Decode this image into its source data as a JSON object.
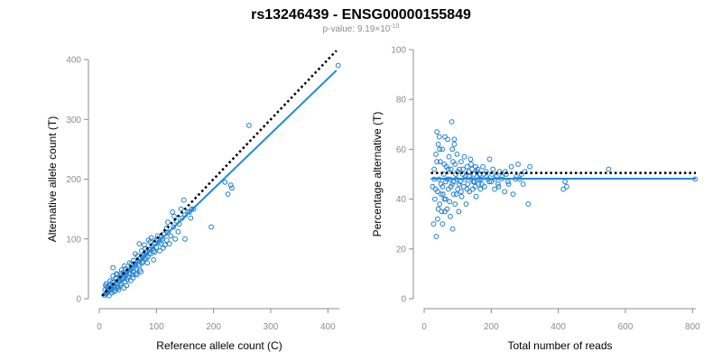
{
  "title": "rs13246439 - ENSG00000155849",
  "subtitle_prefix": "p-value: 9.19×10",
  "subtitle_exponent": "-10",
  "colors": {
    "points": "#1f7fd0",
    "fit": "#1e88e5",
    "reference": "#000000",
    "axis": "#8c8c8c"
  },
  "chart_data": [
    {
      "type": "scatter",
      "xlabel": "Reference allele count (C)",
      "ylabel": "Alternative allele count (T)",
      "xlim": [
        0,
        420
      ],
      "ylim": [
        0,
        400
      ],
      "xticks": [
        "0",
        "100",
        "200",
        "300",
        "400"
      ],
      "yticks": [
        "0",
        "100",
        "200",
        "300",
        "400"
      ],
      "fit_line": {
        "x": [
          5,
          415
        ],
        "y": [
          4,
          382
        ]
      },
      "reference_line": {
        "x": [
          5,
          415
        ],
        "y": [
          5,
          415
        ]
      },
      "points": [
        [
          12,
          8
        ],
        [
          15,
          12
        ],
        [
          18,
          15
        ],
        [
          20,
          18
        ],
        [
          22,
          10
        ],
        [
          25,
          22
        ],
        [
          28,
          14
        ],
        [
          30,
          26
        ],
        [
          32,
          20
        ],
        [
          35,
          30
        ],
        [
          14,
          20
        ],
        [
          17,
          5
        ],
        [
          19,
          24
        ],
        [
          23,
          28
        ],
        [
          26,
          12
        ],
        [
          29,
          35
        ],
        [
          33,
          18
        ],
        [
          36,
          38
        ],
        [
          38,
          25
        ],
        [
          40,
          32
        ],
        [
          42,
          44
        ],
        [
          45,
          28
        ],
        [
          47,
          40
        ],
        [
          50,
          36
        ],
        [
          52,
          48
        ],
        [
          55,
          30
        ],
        [
          57,
          52
        ],
        [
          60,
          45
        ],
        [
          62,
          58
        ],
        [
          65,
          50
        ],
        [
          68,
          62
        ],
        [
          70,
          55
        ],
        [
          72,
          68
        ],
        [
          75,
          60
        ],
        [
          78,
          72
        ],
        [
          80,
          66
        ],
        [
          83,
          78
        ],
        [
          85,
          70
        ],
        [
          88,
          82
        ],
        [
          90,
          75
        ],
        [
          92,
          88
        ],
        [
          95,
          80
        ],
        [
          98,
          92
        ],
        [
          100,
          86
        ],
        [
          105,
          95
        ],
        [
          110,
          100
        ],
        [
          115,
          90
        ],
        [
          120,
          110
        ],
        [
          125,
          105
        ],
        [
          130,
          120
        ],
        [
          135,
          130
        ],
        [
          140,
          125
        ],
        [
          145,
          135
        ],
        [
          150,
          140
        ],
        [
          155,
          145
        ],
        [
          160,
          135
        ],
        [
          162,
          150
        ],
        [
          44,
          55
        ],
        [
          48,
          22
        ],
        [
          58,
          40
        ],
        [
          63,
          75
        ],
        [
          73,
          45
        ],
        [
          86,
          98
        ],
        [
          95,
          65
        ],
        [
          112,
          85
        ],
        [
          128,
          145
        ],
        [
          133,
          100
        ],
        [
          148,
          165
        ],
        [
          150,
          100
        ],
        [
          196,
          120
        ],
        [
          220,
          195
        ],
        [
          225,
          175
        ],
        [
          230,
          190
        ],
        [
          232,
          185
        ],
        [
          262,
          290
        ],
        [
          418,
          390
        ],
        [
          24,
          38
        ],
        [
          27,
          18
        ],
        [
          31,
          40
        ],
        [
          34,
          15
        ],
        [
          37,
          22
        ],
        [
          39,
          48
        ],
        [
          41,
          35
        ],
        [
          43,
          18
        ],
        [
          46,
          50
        ],
        [
          49,
          32
        ],
        [
          53,
          42
        ],
        [
          56,
          58
        ],
        [
          59,
          35
        ],
        [
          61,
          52
        ],
        [
          64,
          42
        ],
        [
          67,
          72
        ],
        [
          69,
          58
        ],
        [
          71,
          48
        ],
        [
          74,
          80
        ],
        [
          77,
          62
        ],
        [
          79,
          90
        ],
        [
          82,
          68
        ],
        [
          84,
          60
        ],
        [
          87,
          76
        ],
        [
          91,
          102
        ],
        [
          94,
          84
        ],
        [
          97,
          78
        ],
        [
          103,
          98
        ],
        [
          108,
          92
        ],
        [
          113,
          108
        ],
        [
          118,
          98
        ],
        [
          123,
          92
        ],
        [
          10,
          15
        ],
        [
          13,
          9
        ],
        [
          16,
          18
        ],
        [
          21,
          14
        ],
        [
          11,
          22
        ],
        [
          9,
          6
        ],
        [
          19,
          30
        ],
        [
          102,
          105
        ],
        [
          138,
          112
        ],
        [
          143,
          150
        ],
        [
          165,
          150
        ],
        [
          118,
          118
        ],
        [
          12,
          25
        ],
        [
          24,
          52
        ],
        [
          30,
          42
        ],
        [
          36,
          30
        ],
        [
          53,
          60
        ],
        [
          66,
          40
        ],
        [
          89,
          95
        ],
        [
          106,
          80
        ],
        [
          70,
          92
        ],
        [
          60,
          64
        ],
        [
          22,
          17
        ],
        [
          26,
          28
        ],
        [
          14,
          14
        ],
        [
          17,
          21
        ],
        [
          48,
          44
        ],
        [
          55,
          48
        ],
        [
          80,
          84
        ],
        [
          84,
          80
        ],
        [
          76,
          70
        ],
        [
          109,
          104
        ],
        [
          131,
          138
        ],
        [
          158,
          145
        ],
        [
          120,
          128
        ],
        [
          100,
          98
        ],
        [
          44,
          36
        ],
        [
          38,
          42
        ],
        [
          33,
          30
        ]
      ]
    },
    {
      "type": "scatter",
      "xlabel": "Total number of reads",
      "ylabel": "Percentage alternative (T)",
      "xlim": [
        0,
        810
      ],
      "ylim": [
        0,
        100
      ],
      "xticks": [
        "0",
        "200",
        "400",
        "600",
        "800"
      ],
      "yticks": [
        "0",
        "20",
        "40",
        "60",
        "80",
        "100"
      ],
      "fit_line": {
        "x": [
          20,
          810
        ],
        "y": [
          48.2,
          48.2
        ]
      },
      "reference_line": {
        "x": [
          20,
          810
        ],
        "y": [
          50.5,
          50.5
        ]
      },
      "points": [
        [
          25,
          45
        ],
        [
          28,
          30
        ],
        [
          30,
          52
        ],
        [
          32,
          40
        ],
        [
          35,
          58
        ],
        [
          36,
          25
        ],
        [
          38,
          67
        ],
        [
          40,
          43
        ],
        [
          42,
          62
        ],
        [
          44,
          48
        ],
        [
          46,
          38
        ],
        [
          48,
          55
        ],
        [
          50,
          42
        ],
        [
          52,
          35
        ],
        [
          54,
          60
        ],
        [
          55,
          45
        ],
        [
          58,
          50
        ],
        [
          60,
          40
        ],
        [
          62,
          65
        ],
        [
          64,
          47
        ],
        [
          66,
          53
        ],
        [
          68,
          36
        ],
        [
          70,
          64
        ],
        [
          72,
          44
        ],
        [
          74,
          57
        ],
        [
          76,
          48
        ],
        [
          78,
          33
        ],
        [
          80,
          52
        ],
        [
          82,
          71
        ],
        [
          84,
          46
        ],
        [
          86,
          55
        ],
        [
          88,
          42
        ],
        [
          90,
          62
        ],
        [
          92,
          38
        ],
        [
          94,
          50
        ],
        [
          96,
          48
        ],
        [
          98,
          58
        ],
        [
          100,
          44
        ],
        [
          103,
          35
        ],
        [
          105,
          52
        ],
        [
          108,
          47
        ],
        [
          110,
          55
        ],
        [
          112,
          41
        ],
        [
          115,
          50
        ],
        [
          118,
          45
        ],
        [
          120,
          57
        ],
        [
          123,
          49
        ],
        [
          125,
          38
        ],
        [
          128,
          53
        ],
        [
          130,
          46
        ],
        [
          133,
          51
        ],
        [
          135,
          43
        ],
        [
          138,
          56
        ],
        [
          140,
          48
        ],
        [
          143,
          52
        ],
        [
          145,
          44
        ],
        [
          148,
          50
        ],
        [
          150,
          47
        ],
        [
          153,
          53
        ],
        [
          155,
          41
        ],
        [
          158,
          49
        ],
        [
          160,
          52
        ],
        [
          163,
          46
        ],
        [
          165,
          50
        ],
        [
          168,
          44
        ],
        [
          170,
          48
        ],
        [
          175,
          53
        ],
        [
          180,
          45
        ],
        [
          185,
          51
        ],
        [
          190,
          48
        ],
        [
          195,
          56
        ],
        [
          200,
          47
        ],
        [
          205,
          52
        ],
        [
          210,
          44
        ],
        [
          215,
          49
        ],
        [
          220,
          46
        ],
        [
          225,
          51
        ],
        [
          230,
          48
        ],
        [
          240,
          43
        ],
        [
          245,
          50
        ],
        [
          250,
          47
        ],
        [
          260,
          53
        ],
        [
          265,
          42
        ],
        [
          275,
          49
        ],
        [
          280,
          54
        ],
        [
          285,
          48
        ],
        [
          295,
          46
        ],
        [
          300,
          51
        ],
        [
          310,
          38
        ],
        [
          315,
          53
        ],
        [
          415,
          44
        ],
        [
          420,
          47
        ],
        [
          425,
          45
        ],
        [
          550,
          52
        ],
        [
          808,
          48
        ],
        [
          30,
          48
        ],
        [
          34,
          44
        ],
        [
          38,
          55
        ],
        [
          42,
          36
        ],
        [
          46,
          60
        ],
        [
          50,
          46
        ],
        [
          56,
          42
        ],
        [
          60,
          54
        ],
        [
          64,
          40
        ],
        [
          68,
          48
        ],
        [
          72,
          52
        ],
        [
          76,
          39
        ],
        [
          80,
          45
        ],
        [
          84,
          60
        ],
        [
          88,
          47
        ],
        [
          92,
          54
        ],
        [
          96,
          42
        ],
        [
          100,
          51
        ],
        [
          104,
          46
        ],
        [
          110,
          43
        ],
        [
          116,
          52
        ],
        [
          122,
          48
        ],
        [
          128,
          44
        ],
        [
          134,
          49
        ],
        [
          140,
          54
        ],
        [
          146,
          47
        ],
        [
          152,
          45
        ],
        [
          158,
          51
        ],
        [
          164,
          48
        ],
        [
          172,
          46
        ],
        [
          178,
          50
        ],
        [
          186,
          49
        ],
        [
          194,
          47
        ],
        [
          202,
          50
        ],
        [
          212,
          48
        ],
        [
          222,
          45
        ],
        [
          232,
          49
        ],
        [
          242,
          51
        ],
        [
          252,
          46
        ],
        [
          272,
          48
        ],
        [
          290,
          50
        ],
        [
          45,
          65
        ],
        [
          55,
          30
        ],
        [
          85,
          28
        ],
        [
          90,
          64
        ],
        [
          62,
          35
        ],
        [
          40,
          32
        ]
      ]
    }
  ]
}
